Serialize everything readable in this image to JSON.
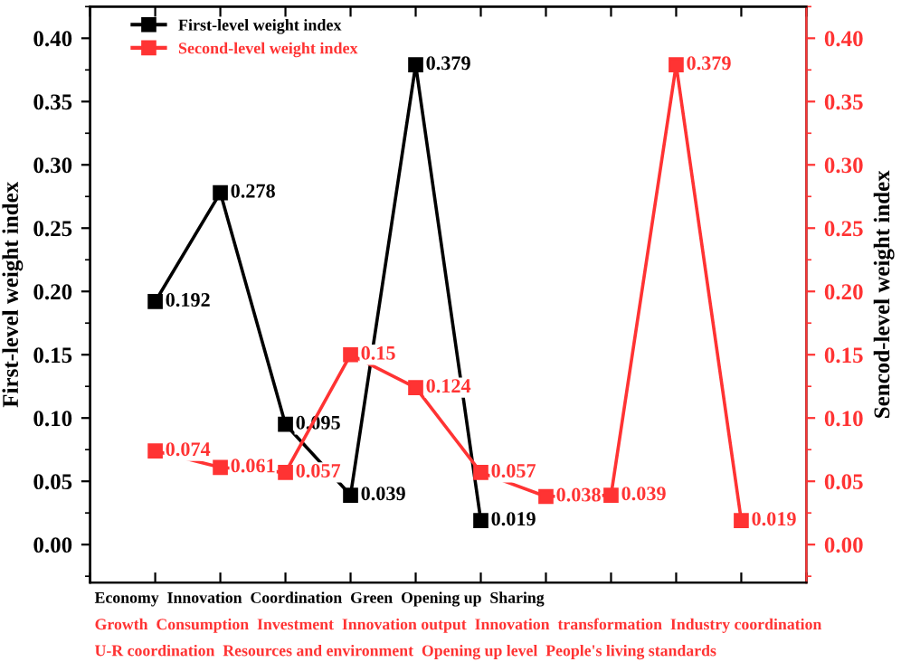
{
  "chart_data": {
    "type": "line",
    "categories": [
      null,
      null,
      null,
      null,
      null,
      null,
      null,
      null,
      null,
      null
    ],
    "series": [
      {
        "name": "First-level weight index",
        "color": "#000000",
        "values": [
          0.192,
          0.278,
          0.095,
          0.039,
          0.379,
          0.019,
          null,
          null,
          null,
          null
        ]
      },
      {
        "name": "Second-level weight index",
        "color": "#ff3333",
        "axis": "y2",
        "values": [
          0.074,
          0.061,
          0.057,
          0.15,
          0.124,
          0.057,
          0.038,
          0.039,
          0.379,
          0.019
        ]
      }
    ],
    "ylabel": "First-level weight index",
    "y2label": "Sencod-level weight index",
    "ylim": [
      -0.03,
      0.425
    ],
    "yticks": [
      {
        "value": 0,
        "label": "0.00"
      },
      0.05,
      {
        "value": 0.1,
        "label": "0.10"
      },
      0.15,
      {
        "value": 0.2,
        "label": "0.20"
      },
      0.25,
      {
        "value": 0.3,
        "label": "0.30"
      },
      0.35,
      {
        "value": 0.4,
        "label": "0.40"
      }
    ],
    "y2lim": [
      -0.03,
      0.425
    ],
    "y2ticks": [
      {
        "value": 0,
        "label": "0.00"
      },
      0.05,
      {
        "value": 0.1,
        "label": "0.10"
      },
      0.15,
      {
        "value": 0.2,
        "label": "0.20"
      },
      0.25,
      {
        "value": 0.3,
        "label": "0.30"
      },
      0.35,
      {
        "value": 0.4,
        "label": "0.40"
      }
    ],
    "annotations": [
      "Economy  Innovation  Coordination  Green  Opening up  Sharing",
      "Growth  Consumption  Investment  Innovation output  Innovation  transformation  Industry coordination",
      "U-R coordination  Resources and environment  Opening up level  People's living standards"
    ],
    "marker": "square",
    "line_style": "solid",
    "data_labels": true,
    "legend": "top left",
    "grid": false
  }
}
